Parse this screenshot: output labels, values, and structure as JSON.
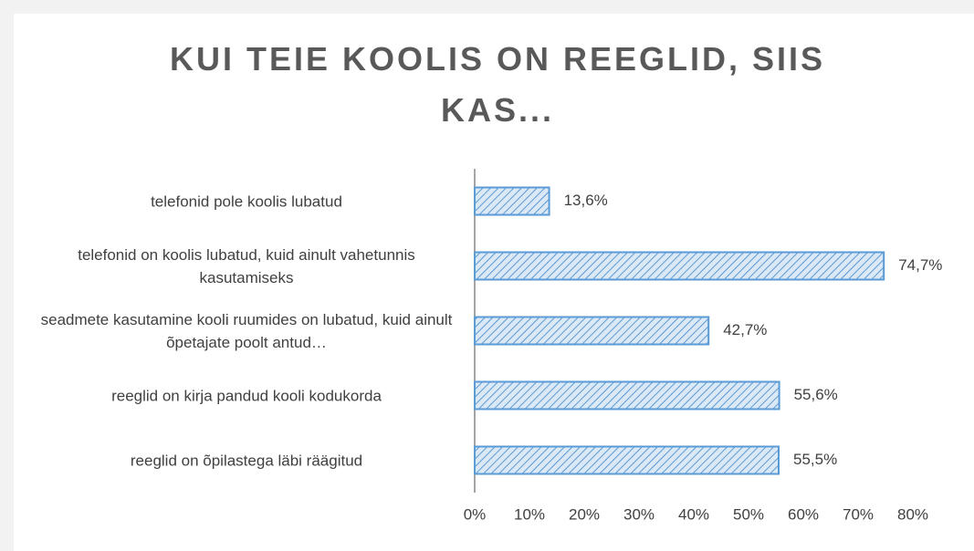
{
  "chart_data": {
    "type": "bar",
    "orientation": "horizontal",
    "title": "KUI TEIE KOOLIS ON REEGLID, SIIS KAS...",
    "categories": [
      "telefonid pole koolis lubatud",
      "telefonid on koolis lubatud, kuid ainult vahetunnis kasutamiseks",
      "seadmete kasutamine kooli ruumides on lubatud, kuid ainult õpetajate poolt antud…",
      "reeglid on kirja pandud kooli kodukorda",
      "reeglid on õpilastega läbi räägitud"
    ],
    "values": [
      13.6,
      74.7,
      42.7,
      55.6,
      55.5
    ],
    "value_labels": [
      "13,6%",
      "74,7%",
      "42,7%",
      "55,6%",
      "55,5%"
    ],
    "color": "#5b9bd5",
    "xlim": [
      0,
      80
    ],
    "xticks": [
      {
        "value": 0,
        "label": "0%"
      },
      {
        "value": 10,
        "label": "10%"
      },
      {
        "value": 20,
        "label": "20%"
      },
      {
        "value": 30,
        "label": "30%"
      },
      {
        "value": 40,
        "label": "40%"
      },
      {
        "value": 50,
        "label": "50%"
      },
      {
        "value": 60,
        "label": "60%"
      },
      {
        "value": 70,
        "label": "70%"
      },
      {
        "value": 80,
        "label": "80%"
      }
    ],
    "grid": false
  }
}
